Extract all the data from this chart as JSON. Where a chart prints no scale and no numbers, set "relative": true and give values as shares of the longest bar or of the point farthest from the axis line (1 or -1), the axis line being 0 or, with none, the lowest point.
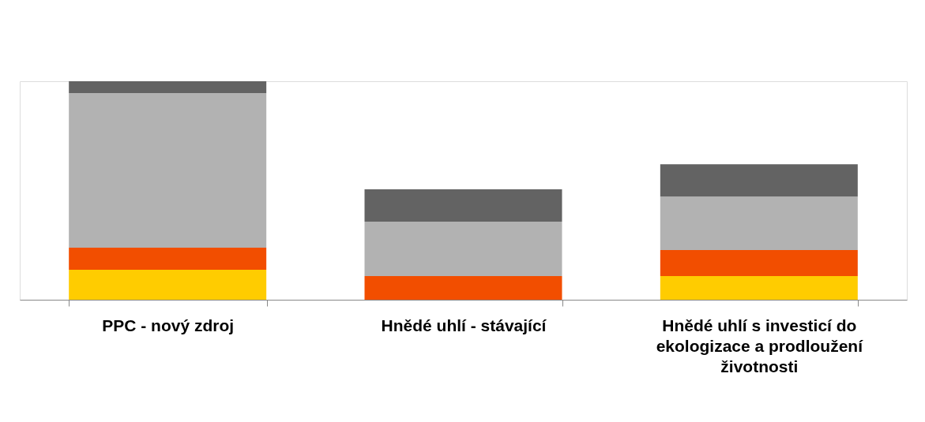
{
  "chart_data": {
    "type": "bar",
    "stacked": true,
    "relative": true,
    "grid": false,
    "legend": false,
    "categories": [
      "PPC - nový zdroj",
      "Hnědé uhlí - stávající",
      "Hnědé uhlí s investicí do ekologizace a prodloužení životnosti"
    ],
    "series": [
      {
        "color": "#ffcc00",
        "values": [
          0.137,
          0.0,
          0.108
        ]
      },
      {
        "color": "#f24e00",
        "values": [
          0.101,
          0.108,
          0.119
        ]
      },
      {
        "color": "#b2b2b2",
        "values": [
          0.708,
          0.249,
          0.245
        ]
      },
      {
        "color": "#636363",
        "values": [
          0.054,
          0.148,
          0.148
        ]
      }
    ]
  }
}
